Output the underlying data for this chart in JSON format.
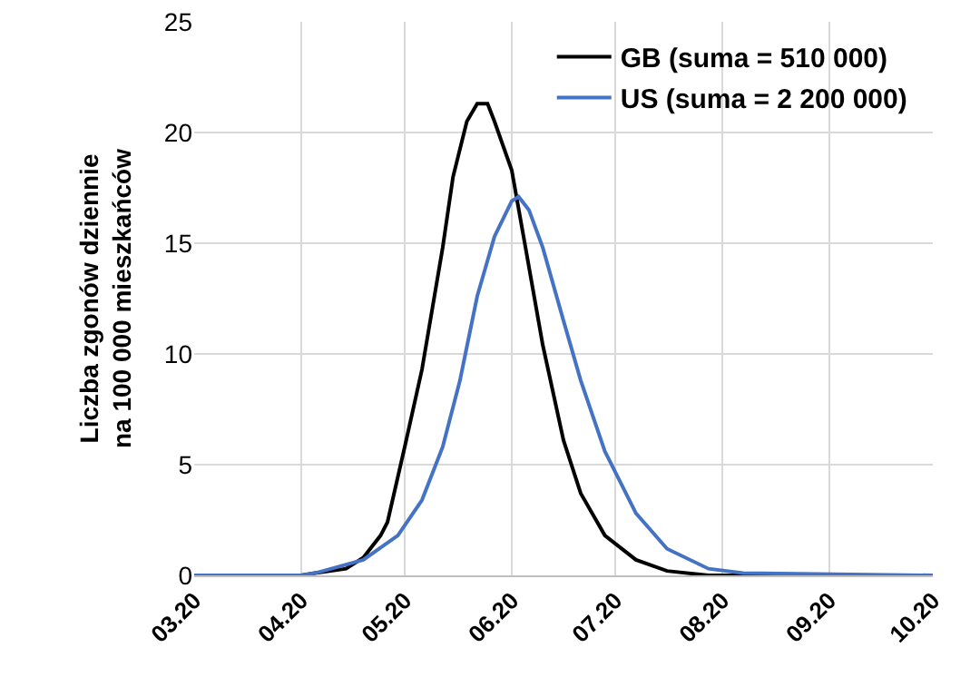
{
  "chart_data": {
    "type": "line",
    "ylabel": "Liczba zgonów dziennie\nna 100 000 mieszkańców",
    "series": [
      {
        "name": "GB (suma = 510 000)",
        "color": "#000000",
        "x": [
          "2020-03-01",
          "2020-04-01",
          "2020-04-05",
          "2020-04-14",
          "2020-04-19",
          "2020-04-24",
          "2020-04-26",
          "2020-05-01",
          "2020-05-06",
          "2020-05-12",
          "2020-05-15",
          "2020-05-19",
          "2020-05-22",
          "2020-05-25",
          "2020-05-27",
          "2020-06-01",
          "2020-06-05",
          "2020-06-10",
          "2020-06-16",
          "2020-06-21",
          "2020-06-28",
          "2020-07-07",
          "2020-07-16",
          "2020-07-28",
          "2020-08-07",
          "2020-10-01"
        ],
        "values": [
          0,
          0,
          0.1,
          0.3,
          0.8,
          1.8,
          2.4,
          5.8,
          9.3,
          14.8,
          18,
          20.5,
          21.3,
          21.3,
          20.5,
          18.3,
          14.8,
          10.4,
          6.1,
          3.7,
          1.8,
          0.7,
          0.2,
          0,
          0,
          0
        ]
      },
      {
        "name": "US (suma = 2 200 000)",
        "color": "#4472c4",
        "x": [
          "2020-03-01",
          "2020-04-01",
          "2020-04-05",
          "2020-04-19",
          "2020-04-29",
          "2020-05-06",
          "2020-05-12",
          "2020-05-17",
          "2020-05-22",
          "2020-05-27",
          "2020-06-01",
          "2020-06-03",
          "2020-06-06",
          "2020-06-10",
          "2020-06-16",
          "2020-06-21",
          "2020-06-28",
          "2020-07-07",
          "2020-07-16",
          "2020-07-28",
          "2020-08-07",
          "2020-10-01"
        ],
        "values": [
          0,
          0,
          0.1,
          0.7,
          1.8,
          3.4,
          5.8,
          8.8,
          12.6,
          15.3,
          16.9,
          17.1,
          16.5,
          14.8,
          11.5,
          8.8,
          5.6,
          2.8,
          1.2,
          0.3,
          0.1,
          0
        ]
      }
    ],
    "xlim": [
      "2020-03-01",
      "2020-10-01"
    ],
    "xticks": [
      {
        "value": "2020-03-01",
        "label": "03.20"
      },
      {
        "value": "2020-04-01",
        "label": "04.20"
      },
      {
        "value": "2020-05-01",
        "label": "05.20"
      },
      {
        "value": "2020-06-01",
        "label": "06.20"
      },
      {
        "value": "2020-07-01",
        "label": "07.20"
      },
      {
        "value": "2020-08-01",
        "label": "08.20"
      },
      {
        "value": "2020-09-01",
        "label": "09.20"
      },
      {
        "value": "2020-10-01",
        "label": "10.20"
      }
    ],
    "ylim": [
      0,
      25
    ],
    "yticks": [
      0,
      5,
      10,
      15,
      20,
      25
    ],
    "grid": true,
    "legend": "top right",
    "marker": "none",
    "line_style": "solid"
  }
}
